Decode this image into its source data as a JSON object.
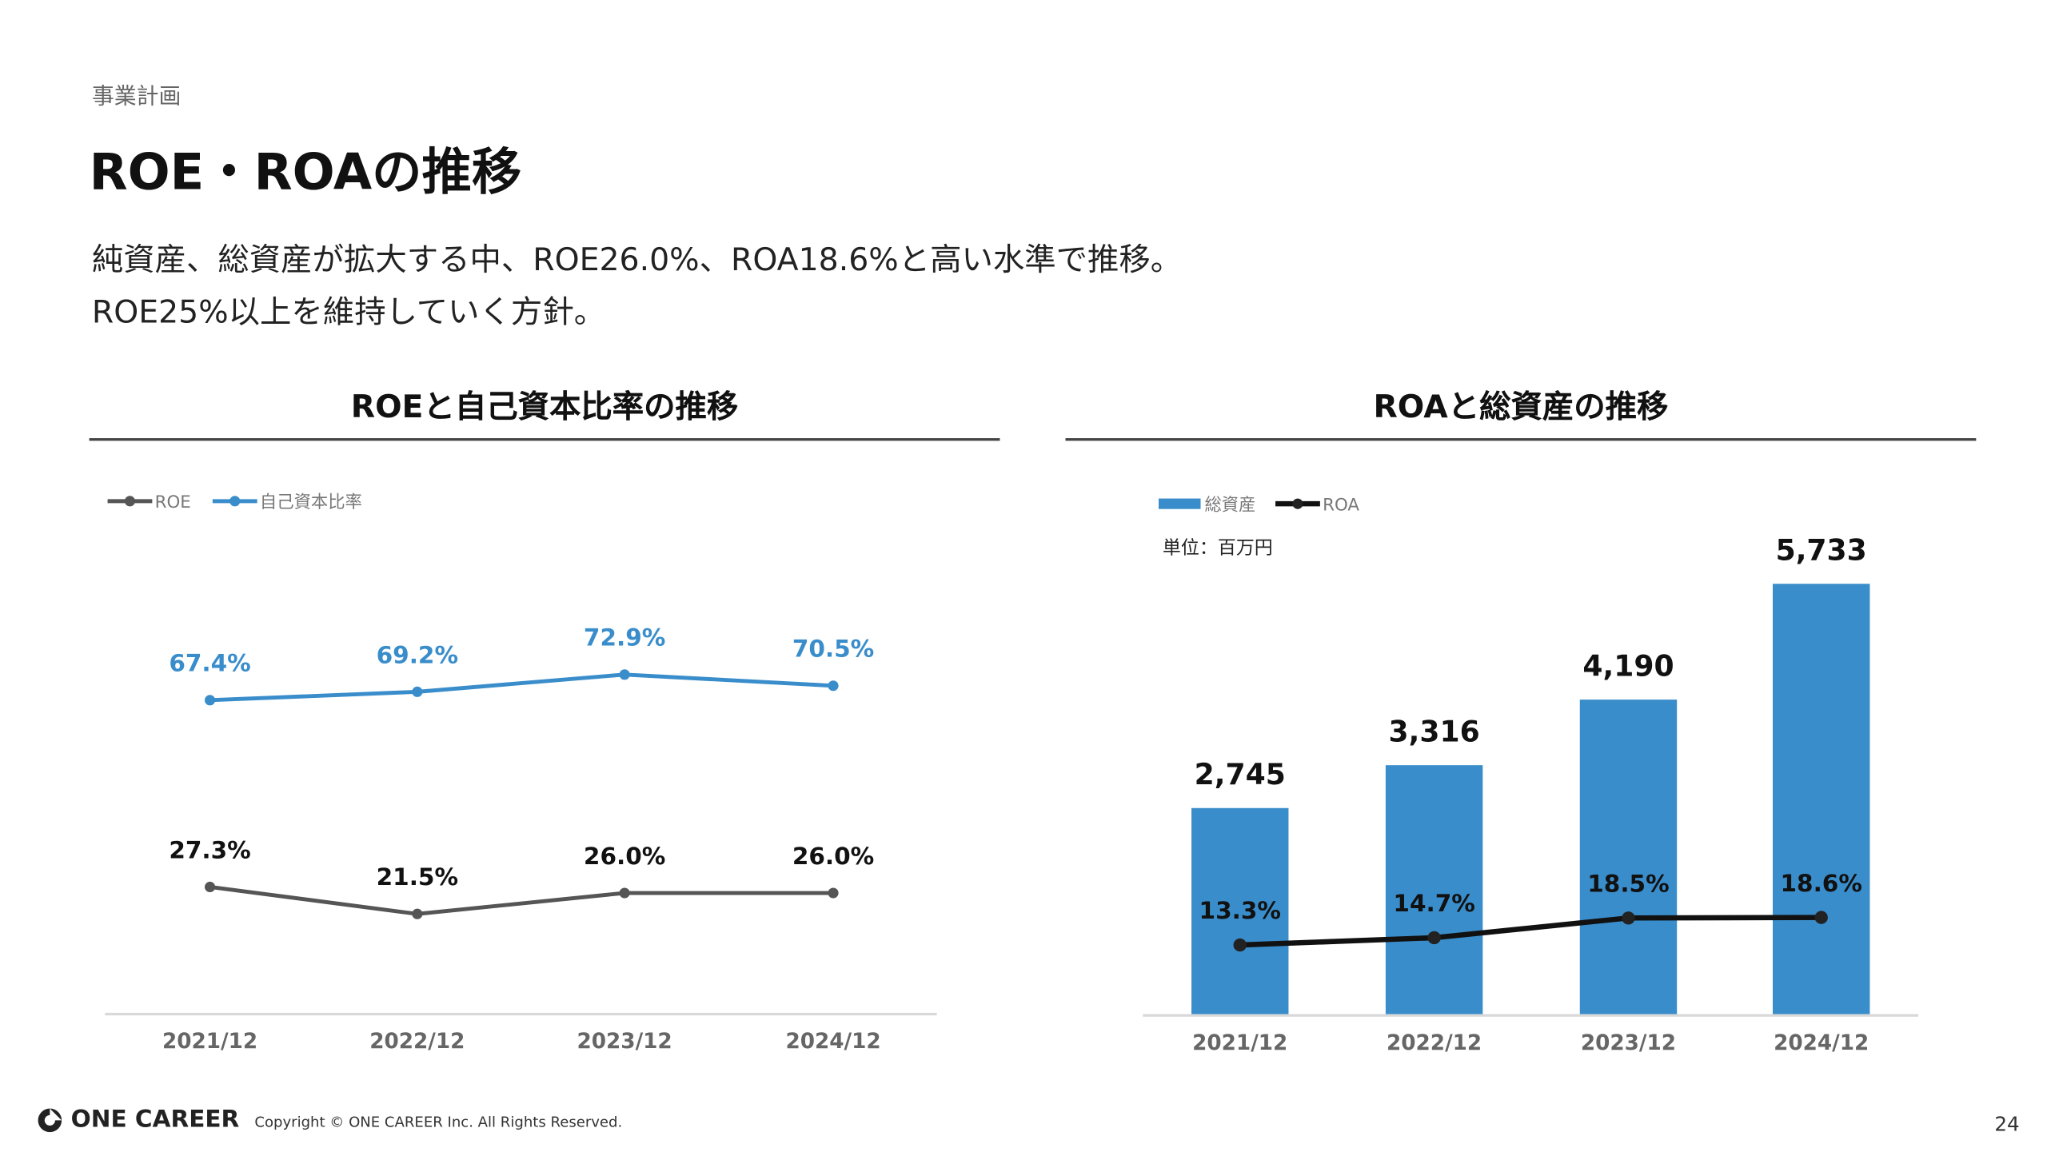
{
  "header": {
    "section": "事業計画",
    "title": "ROE・ROAの推移",
    "lead": [
      "純資産、総資産が拡大する中、ROE26.0%、ROA18.6%と高い水準で推移。",
      "ROE25%以上を維持していく方針。"
    ]
  },
  "footer": {
    "logo": "ONE CAREER",
    "copyright": "Copyright © ONE CAREER Inc. All Rights Reserved.",
    "page": "24"
  },
  "chart_data": [
    {
      "type": "line",
      "title": "ROEと自己資本比率の推移",
      "categories": [
        "2021/12",
        "2022/12",
        "2023/12",
        "2024/12"
      ],
      "series": [
        {
          "name": "ROE",
          "values": [
            27.3,
            21.5,
            26.0,
            26.0
          ],
          "labels": [
            "27.3%",
            "21.5%",
            "26.0%",
            "26.0%"
          ],
          "color": "#555555"
        },
        {
          "name": "自己資本比率",
          "values": [
            67.4,
            69.2,
            72.9,
            70.5
          ],
          "labels": [
            "67.4%",
            "69.2%",
            "72.9%",
            "70.5%"
          ],
          "color": "#3a8dcb"
        }
      ],
      "legend": "top-left",
      "grid": false
    },
    {
      "type": "bar",
      "title": "ROAと総資産の推移",
      "unit": "単位：百万円",
      "categories": [
        "2021/12",
        "2022/12",
        "2023/12",
        "2024/12"
      ],
      "series": [
        {
          "name": "総資産",
          "kind": "bar",
          "values": [
            2745,
            3316,
            4190,
            5733
          ],
          "labels": [
            "2,745",
            "3,316",
            "4,190",
            "5,733"
          ],
          "color": "#3a8dcb"
        },
        {
          "name": "ROA",
          "kind": "line",
          "values": [
            13.3,
            14.7,
            18.5,
            18.6
          ],
          "labels": [
            "13.3%",
            "14.7%",
            "18.5%",
            "18.6%"
          ],
          "color": "#111111"
        }
      ],
      "legend": "top-left",
      "grid": false
    }
  ]
}
